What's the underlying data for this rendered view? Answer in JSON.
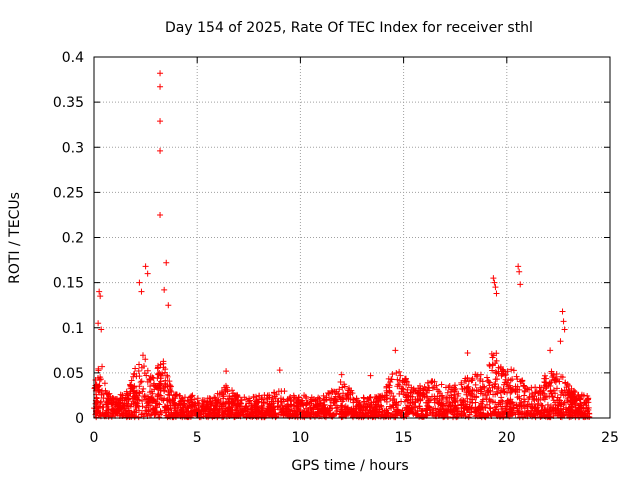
{
  "chart_data": {
    "type": "scatter",
    "title": "Day 154 of 2025, Rate Of TEC Index for receiver sthl",
    "xlabel": "GPS time / hours",
    "ylabel": "ROTI / TECUs",
    "xlim": [
      0,
      25
    ],
    "ylim": [
      0,
      0.4
    ],
    "xticks": [
      0,
      5,
      10,
      15,
      20,
      25
    ],
    "yticks": [
      0,
      0.05,
      0.1,
      0.15,
      0.2,
      0.25,
      0.3,
      0.35,
      0.4
    ],
    "xtick_labels": [
      "0",
      "5",
      "10",
      "15",
      "20",
      "25"
    ],
    "ytick_labels": [
      "0",
      "0.05",
      "0.1",
      "0.15",
      "0.2",
      "0.25",
      "0.3",
      "0.35",
      "0.4"
    ],
    "grid": true,
    "marker": "+",
    "marker_color": "#ff0000",
    "series": [
      {
        "name": "ROTI",
        "x": [
          3.2,
          3.2,
          3.2,
          3.2,
          3.2,
          0.25,
          0.3,
          0.2,
          0.35,
          2.2,
          2.3,
          2.5,
          2.6,
          3.5,
          3.4,
          3.6,
          19.35,
          19.4,
          19.45,
          19.5,
          20.55,
          20.6,
          20.65,
          22.7,
          22.75,
          22.8,
          22.6,
          22.1,
          18.1,
          14.6,
          9.0,
          6.4,
          12.0,
          13.4
        ],
        "y": [
          0.382,
          0.367,
          0.329,
          0.296,
          0.225,
          0.14,
          0.135,
          0.105,
          0.098,
          0.15,
          0.14,
          0.168,
          0.16,
          0.172,
          0.142,
          0.125,
          0.155,
          0.15,
          0.145,
          0.138,
          0.168,
          0.162,
          0.148,
          0.118,
          0.107,
          0.098,
          0.085,
          0.075,
          0.072,
          0.075,
          0.053,
          0.052,
          0.048,
          0.047
        ]
      }
    ]
  }
}
